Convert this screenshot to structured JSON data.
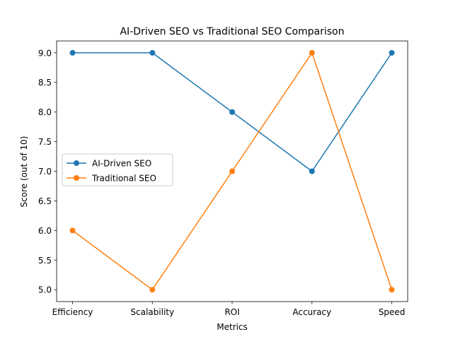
{
  "chart_data": {
    "type": "line",
    "title": "AI-Driven SEO vs Traditional SEO Comparison",
    "xlabel": "Metrics",
    "ylabel": "Score (out of 10)",
    "categories": [
      "Efficiency",
      "Scalability",
      "ROI",
      "Accuracy",
      "Speed"
    ],
    "series": [
      {
        "name": "AI-Driven SEO",
        "values": [
          9,
          9,
          8,
          7,
          9
        ],
        "color": "#1f77b4",
        "marker": "circle"
      },
      {
        "name": "Traditional SEO",
        "values": [
          6,
          5,
          7,
          9,
          5
        ],
        "color": "#ff7f0e",
        "marker": "circle"
      }
    ],
    "ylim": [
      4.8,
      9.2
    ],
    "yticks": [
      "5.0",
      "5.5",
      "6.0",
      "6.5",
      "7.0",
      "7.5",
      "8.0",
      "8.5",
      "9.0"
    ],
    "grid": false,
    "legend_position": "center-left"
  }
}
